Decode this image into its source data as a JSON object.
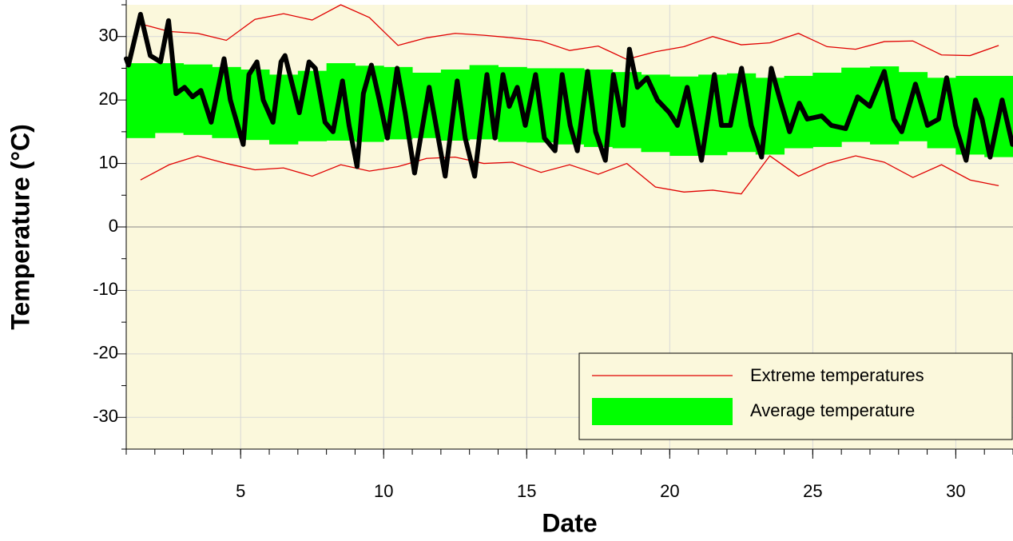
{
  "chart_data": {
    "type": "temperature-band",
    "x_label": "Date",
    "y_label": "Temperature (°C)",
    "xlim": [
      1,
      32
    ],
    "ylim": [
      -35,
      35
    ],
    "xticks": [
      5,
      10,
      15,
      20,
      25,
      30
    ],
    "yticks": [
      -30,
      -20,
      -10,
      0,
      10,
      20,
      30
    ],
    "xminorticks": [
      1,
      2,
      3,
      4,
      5,
      6,
      7,
      8,
      9,
      10,
      11,
      12,
      13,
      14,
      15,
      16,
      17,
      18,
      19,
      20,
      21,
      22,
      23,
      24,
      25,
      26,
      27,
      28,
      29,
      30,
      31,
      32
    ],
    "yminorticks": [
      -35,
      -25,
      -15,
      -5,
      5,
      15,
      25,
      35
    ],
    "grid": true,
    "background": "#fbf8dc",
    "legend_position": "lower right",
    "band": {
      "name": "Average temperature",
      "color": "#00ff00",
      "bins": [
        1,
        2,
        3,
        4,
        5,
        6,
        7,
        8,
        9,
        10,
        11,
        12,
        13,
        14,
        15,
        16,
        17,
        18,
        19,
        20,
        21,
        22,
        23,
        24,
        25,
        26,
        27,
        28,
        29,
        30,
        31,
        32
      ],
      "low": [
        14,
        14.8,
        14.5,
        14,
        13.7,
        13,
        13.5,
        13.6,
        13.4,
        13.8,
        14,
        13.6,
        13.8,
        13.4,
        13.3,
        13,
        12.6,
        12.4,
        11.8,
        11.2,
        11.3,
        11.8,
        11.4,
        12.4,
        12.6,
        13.4,
        13,
        13.5,
        12.4,
        11.4,
        11
      ],
      "high": [
        25.8,
        25.8,
        25.6,
        25.2,
        24.8,
        24,
        24.6,
        25.8,
        25.4,
        25.2,
        24.3,
        24.8,
        25.5,
        25.2,
        25,
        25,
        24.8,
        24.4,
        24,
        23.7,
        24,
        24.2,
        23.5,
        23.8,
        24.3,
        25.1,
        25.3,
        24.4,
        23.5,
        23.8,
        23.8
      ]
    },
    "extremes": {
      "name": "Extreme temperatures",
      "color": "#e00000",
      "x": [
        1.5,
        2.5,
        3.5,
        4.5,
        5.5,
        6.5,
        7.5,
        8.5,
        9.5,
        10.5,
        11.5,
        12.5,
        13.5,
        14.5,
        15.5,
        16.5,
        17.5,
        18.5,
        19.5,
        20.5,
        21.5,
        22.5,
        23.5,
        24.5,
        25.5,
        26.5,
        27.5,
        28.5,
        29.5,
        30.5,
        31.5
      ],
      "max": [
        32,
        30.8,
        30.5,
        29.4,
        32.7,
        33.6,
        32.6,
        35,
        33,
        28.6,
        29.8,
        30.5,
        30.2,
        29.8,
        29.3,
        27.8,
        28.5,
        26.4,
        27.6,
        28.4,
        30,
        28.7,
        29,
        30.5,
        28.4,
        28,
        29.2,
        29.3,
        27.1,
        27,
        28.6
      ],
      "min": [
        7.4,
        9.8,
        11.2,
        10,
        9,
        9.3,
        8,
        9.8,
        8.8,
        9.5,
        10.8,
        11,
        10,
        10.2,
        8.6,
        9.8,
        8.3,
        10,
        6.3,
        5.5,
        5.8,
        5.2,
        11.2,
        8,
        10,
        11.2,
        10.2,
        7.8,
        9.8,
        7.4,
        6.5
      ]
    },
    "series": [
      {
        "color": "#000000",
        "x": [
          1.0,
          1.08,
          1.5,
          1.84,
          2.2,
          2.48,
          2.74,
          3.04,
          3.32,
          3.61,
          3.97,
          4.42,
          4.64,
          5.09,
          5.29,
          5.57,
          5.79,
          6.13,
          6.41,
          6.55,
          6.83,
          7.05,
          7.39,
          7.61,
          7.95,
          8.23,
          8.56,
          8.79,
          9.07,
          9.29,
          9.57,
          9.85,
          10.13,
          10.47,
          10.75,
          11.08,
          11.59,
          11.87,
          12.15,
          12.57,
          12.85,
          13.18,
          13.61,
          13.89,
          14.17,
          14.39,
          14.67,
          14.95,
          15.31,
          15.62,
          15.99,
          16.24,
          16.52,
          16.77,
          17.13,
          17.41,
          17.75,
          18.03,
          18.37,
          18.59,
          18.87,
          19.21,
          19.57,
          19.99,
          20.27,
          20.61,
          21.11,
          21.56,
          21.81,
          22.12,
          22.51,
          22.85,
          23.21,
          23.55,
          23.86,
          24.19,
          24.53,
          24.81,
          25.31,
          25.65,
          26.15,
          26.57,
          26.99,
          27.5,
          27.83,
          28.11,
          28.59,
          29.01,
          29.4,
          29.68,
          29.99,
          30.36,
          30.69,
          30.92,
          31.2,
          31.62,
          31.98
        ],
        "values": [
          26.5,
          25.5,
          33.5,
          27,
          26,
          32.5,
          21,
          22,
          20.5,
          21.5,
          16.5,
          26.5,
          20,
          13,
          24,
          26,
          20,
          16.5,
          26,
          27,
          22,
          18,
          26,
          25,
          16.5,
          15,
          23,
          16,
          9.5,
          21,
          25.5,
          20,
          14,
          25,
          18,
          8.5,
          22,
          15,
          8,
          23,
          14,
          8,
          24,
          14,
          24,
          19,
          22,
          16,
          24,
          14,
          12,
          24,
          16,
          12,
          24.5,
          15,
          10.5,
          24,
          16,
          28,
          22,
          23.5,
          20,
          18,
          16,
          22,
          10.5,
          24,
          16,
          16,
          25,
          16,
          11,
          25,
          20,
          15,
          19.5,
          17,
          17.5,
          16,
          15.5,
          20.5,
          19,
          24.5,
          17,
          15,
          22.5,
          16,
          17,
          23.5,
          16,
          10.5,
          20,
          17,
          11,
          20,
          13
        ]
      }
    ]
  }
}
